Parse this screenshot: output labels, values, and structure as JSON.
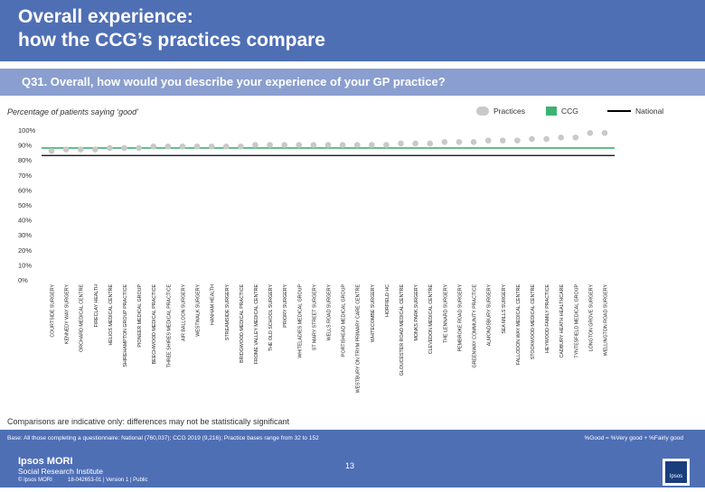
{
  "header": {
    "title_line1": "Overall experience:",
    "title_line2": "how the CCG’s practices compare",
    "question": "Q31. Overall, how would you describe your experience of your GP practice?"
  },
  "subtitle": "Percentage of patients saying ‘good’",
  "legend": {
    "practices": "Practices",
    "ccg": "CCG",
    "national": "National"
  },
  "colors": {
    "header_bg": "#4f6fb5",
    "practice_marker": "#c9c9c9",
    "ccg": "#3cb371",
    "national": "#000000"
  },
  "chart_data": {
    "type": "scatter",
    "title": "Percentage of patients saying ‘good’",
    "ylim": [
      0,
      100
    ],
    "yticks": [
      "0%",
      "10%",
      "20%",
      "30%",
      "40%",
      "50%",
      "60%",
      "70%",
      "80%",
      "90%",
      "100%"
    ],
    "ylabel": "",
    "xlabel": "",
    "grid": false,
    "categories": [
      "COURTSIDE SURGERY",
      "KENNEDY WAY SURGERY",
      "ORCHARD MEDICAL CENTRE",
      "FIRECLAY HEALTH",
      "HELIOS MEDICAL CENTRE",
      "SHIREHAMPTON GROUP PRACTICE",
      "PIONEER MEDICAL GROUP",
      "BEECHWOOD MEDICAL PRACTICE",
      "THREE SHIRES MEDICAL PRACTICE",
      "AIR BALLOON SURGERY",
      "WESTWALK SURGERY",
      "HANHAM HEALTH",
      "STREAMSIDE SURGERY",
      "BRIDGWOOD MEDICAL PRACTICE",
      "FROME VALLEY MEDICAL CENTRE",
      "THE OLD SCHOOL SURGERY",
      "PRIORY SURGERY",
      "WHITELADIES MEDICAL GROUP",
      "ST MARY STREET SURGERY",
      "WELLS ROAD SURGERY",
      "PORTISHEAD MEDICAL GROUP",
      "WESTBURY ON TRYM PRIMARY CARE CENTRE",
      "WHITECOMBE SURGERY",
      "HORFIELD HC",
      "GLOUCESTER ROAD MEDICAL CENTRE",
      "MONKS PARK SURGERY",
      "CLEVEDON MEDICAL CENTRE",
      "THE LENNARD SURGERY",
      "PEMBROKE ROAD SURGERY",
      "GREENWAY COMMUNITY PRACTICE",
      "ALMONDSBURY SURGERY",
      "SEA MILLS SURGERY",
      "FALLODON WAY MEDICAL CENTRE",
      "STOCKWOOD MEDICAL CENTRE",
      "HEYWOOD FAMILY PRACTICE",
      "CADBURY HEATH HEALTHCARE",
      "TYNTESFIELD MEDICAL GROUP",
      "LONGTON GROVE SURGERY",
      "WELLINGTON ROAD SURGERY"
    ],
    "series": [
      {
        "name": "Practices",
        "values": [
          86,
          87,
          87,
          87,
          88,
          88,
          88,
          89,
          89,
          89,
          89,
          89,
          89,
          89,
          90,
          90,
          90,
          90,
          90,
          90,
          90,
          90,
          90,
          90,
          91,
          91,
          91,
          92,
          92,
          92,
          93,
          93,
          93,
          94,
          94,
          95,
          95,
          98,
          98
        ]
      }
    ],
    "ccg_value": 88,
    "national_value": 83
  },
  "footnote": "Comparisons are indicative only: differences may not be statistically significant",
  "footer": {
    "base": "Base: All those completing a questionnaire: National (760,037); CCG 2019 (9,216); Practice bases range from 32 to 152",
    "formula": "%Good = %Very good + %Fairly good",
    "logo_name": "Ipsos MORI",
    "logo_sub": "Social Research Institute",
    "copyright": "© Ipsos MORI",
    "jobref": "18-042653-01 | Version 1 | Public",
    "page": "13",
    "badge": "Ipsos"
  }
}
